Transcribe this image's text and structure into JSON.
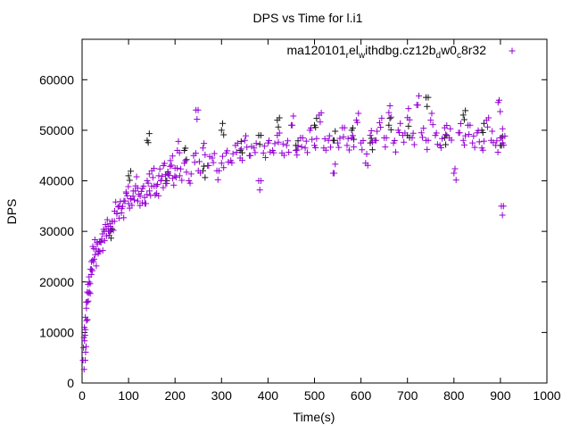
{
  "chart_data": {
    "type": "scatter",
    "title": "DPS vs Time for l.i1",
    "xlabel": "Time(s)",
    "ylabel": "DPS",
    "xlim": [
      0,
      1000
    ],
    "ylim": [
      0,
      68000
    ],
    "xticks": [
      0,
      100,
      200,
      300,
      400,
      500,
      600,
      700,
      800,
      900,
      1000
    ],
    "yticks": [
      0,
      10000,
      20000,
      30000,
      40000,
      50000,
      60000
    ],
    "grid": false,
    "legend_position": "top-right",
    "legend": {
      "base": "ma120101",
      "parts": [
        [
          "r",
          "el"
        ],
        [
          "w",
          "ithdbg.cz12b"
        ],
        [
          "d",
          "w0"
        ],
        [
          "c",
          "8r32"
        ]
      ]
    },
    "series": [
      {
        "name": "ma120101_rel_withdbg.cz12b_dw0_c8r32",
        "color": "#9400d3",
        "points": [
          [
            2,
            4500
          ],
          [
            3,
            7000
          ],
          [
            4,
            9000
          ],
          [
            5,
            11000
          ],
          [
            7,
            13000
          ],
          [
            9,
            16000
          ],
          [
            11,
            18000
          ],
          [
            13,
            19500
          ],
          [
            15,
            21000
          ],
          [
            18,
            22500
          ],
          [
            20,
            24000
          ],
          [
            23,
            27000
          ],
          [
            26,
            24500
          ],
          [
            30,
            26500
          ],
          [
            33,
            27500
          ],
          [
            36,
            26000
          ],
          [
            40,
            28000
          ],
          [
            44,
            29500
          ],
          [
            48,
            30000
          ],
          [
            52,
            30500
          ],
          [
            56,
            31000
          ],
          [
            60,
            31500
          ],
          [
            65,
            32000
          ],
          [
            70,
            34000
          ],
          [
            75,
            33500
          ],
          [
            80,
            35000
          ],
          [
            85,
            34500
          ],
          [
            90,
            36000
          ],
          [
            95,
            37500
          ],
          [
            100,
            35500
          ],
          [
            105,
            36500
          ],
          [
            110,
            38000
          ],
          [
            115,
            39000
          ],
          [
            120,
            36000
          ],
          [
            125,
            37000
          ],
          [
            130,
            38500
          ],
          [
            135,
            35500
          ],
          [
            140,
            40000
          ],
          [
            145,
            38000
          ],
          [
            150,
            42000
          ],
          [
            155,
            39000
          ],
          [
            160,
            37500
          ],
          [
            165,
            41000
          ],
          [
            170,
            40000
          ],
          [
            175,
            43000
          ],
          [
            180,
            39500
          ],
          [
            185,
            41500
          ],
          [
            190,
            44000
          ],
          [
            195,
            40500
          ],
          [
            200,
            42500
          ],
          [
            205,
            46000
          ],
          [
            210,
            41000
          ],
          [
            220,
            43500
          ],
          [
            230,
            40000
          ],
          [
            240,
            45000
          ],
          [
            245,
            54000
          ],
          [
            250,
            42000
          ],
          [
            260,
            46500
          ],
          [
            270,
            43000
          ],
          [
            280,
            44500
          ],
          [
            290,
            42000
          ],
          [
            300,
            43500
          ],
          [
            310,
            45500
          ],
          [
            320,
            44000
          ],
          [
            330,
            47000
          ],
          [
            340,
            44500
          ],
          [
            350,
            48000
          ],
          [
            360,
            45000
          ],
          [
            370,
            46500
          ],
          [
            380,
            40000
          ],
          [
            390,
            45500
          ],
          [
            400,
            47500
          ],
          [
            410,
            46000
          ],
          [
            420,
            49000
          ],
          [
            430,
            45500
          ],
          [
            440,
            47000
          ],
          [
            450,
            51000
          ],
          [
            460,
            46000
          ],
          [
            470,
            48500
          ],
          [
            480,
            46500
          ],
          [
            490,
            50000
          ],
          [
            500,
            47000
          ],
          [
            510,
            53000
          ],
          [
            520,
            46500
          ],
          [
            530,
            48000
          ],
          [
            540,
            41500
          ],
          [
            550,
            47500
          ],
          [
            560,
            50500
          ],
          [
            570,
            47000
          ],
          [
            580,
            48500
          ],
          [
            590,
            52000
          ],
          [
            600,
            47500
          ],
          [
            610,
            43500
          ],
          [
            620,
            49000
          ],
          [
            630,
            48000
          ],
          [
            640,
            51500
          ],
          [
            650,
            48500
          ],
          [
            660,
            53500
          ],
          [
            670,
            47500
          ],
          [
            680,
            50000
          ],
          [
            690,
            49000
          ],
          [
            700,
            52500
          ],
          [
            710,
            48500
          ],
          [
            720,
            55000
          ],
          [
            730,
            49500
          ],
          [
            740,
            48000
          ],
          [
            750,
            52000
          ],
          [
            760,
            49000
          ],
          [
            770,
            47000
          ],
          [
            780,
            50500
          ],
          [
            790,
            48500
          ],
          [
            800,
            41500
          ],
          [
            810,
            49500
          ],
          [
            820,
            48000
          ],
          [
            830,
            51000
          ],
          [
            840,
            47500
          ],
          [
            850,
            49500
          ],
          [
            860,
            46500
          ],
          [
            870,
            52000
          ],
          [
            880,
            48000
          ],
          [
            890,
            47000
          ],
          [
            895,
            55500
          ],
          [
            900,
            48500
          ],
          [
            902,
            35000
          ],
          [
            905,
            47500
          ]
        ]
      },
      {
        "name": "",
        "color": "#1a1a1a",
        "points": [
          [
            60,
            30000
          ],
          [
            100,
            41000
          ],
          [
            140,
            48000
          ],
          [
            180,
            40000
          ],
          [
            220,
            46000
          ],
          [
            260,
            42000
          ],
          [
            300,
            50000
          ],
          [
            340,
            46000
          ],
          [
            380,
            49000
          ],
          [
            420,
            52000
          ],
          [
            460,
            47000
          ],
          [
            500,
            51000
          ],
          [
            540,
            48000
          ],
          [
            580,
            50000
          ],
          [
            620,
            47500
          ],
          [
            660,
            51000
          ],
          [
            700,
            49000
          ],
          [
            740,
            56500
          ],
          [
            780,
            48500
          ],
          [
            820,
            53000
          ],
          [
            860,
            50000
          ],
          [
            900,
            47000
          ]
        ]
      }
    ]
  }
}
